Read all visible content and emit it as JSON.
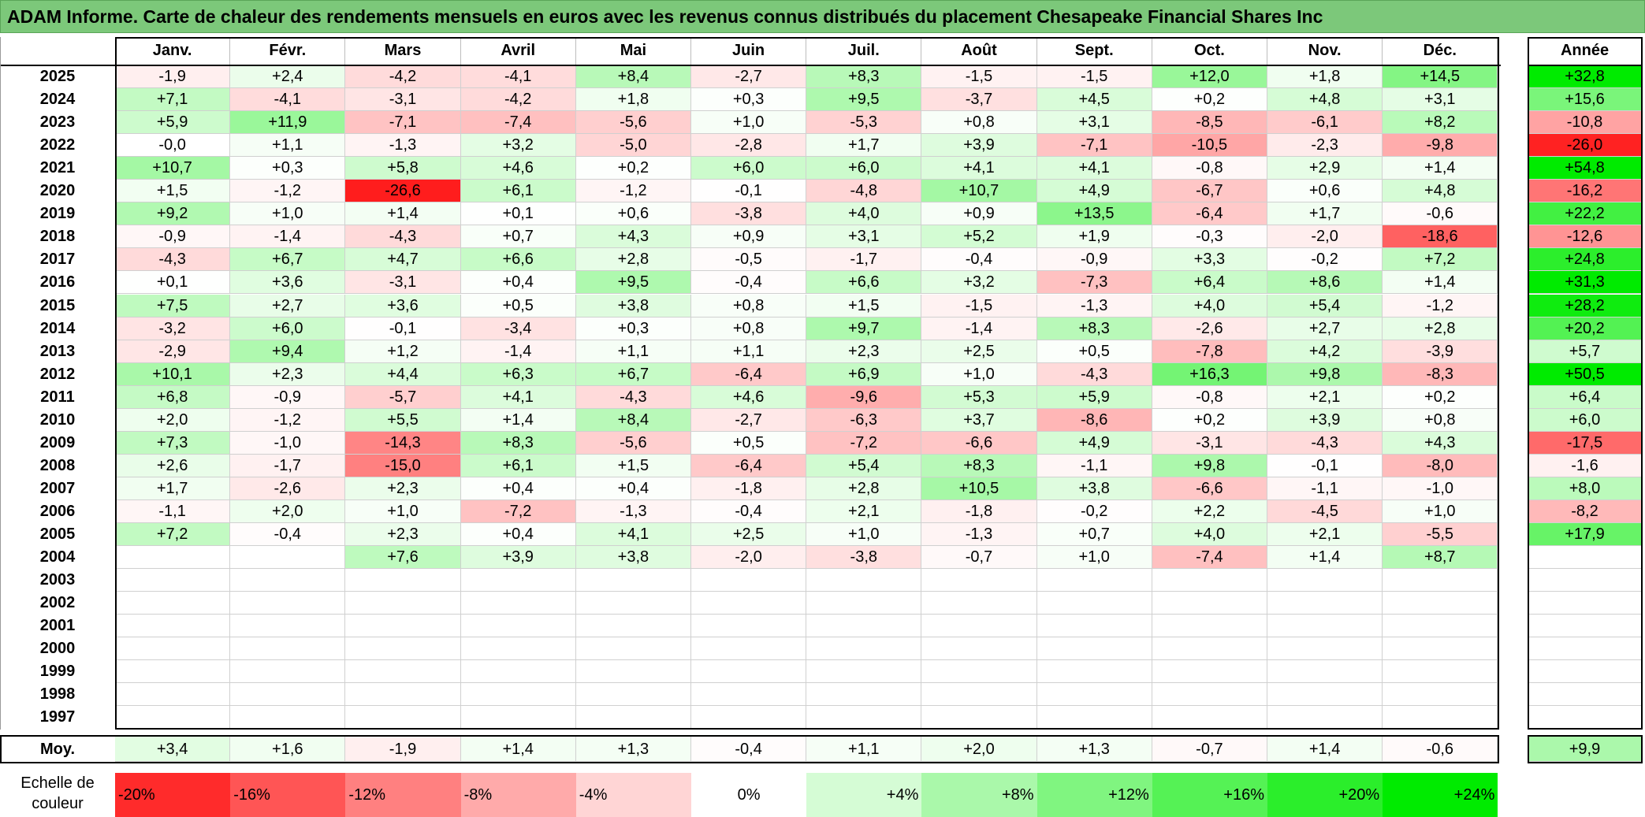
{
  "title": "ADAM Informe. Carte de chaleur des rendements mensuels en euros avec les revenus connus distribués du placement Chesapeake Financial Shares Inc",
  "colors": {
    "title_bg": "#7cc87a",
    "negative_max": "#ff0000",
    "neutral": "#ffffff",
    "positive_max": "#00e600"
  },
  "chart_data": {
    "type": "heatmap",
    "title": "ADAM Informe. Carte de chaleur des rendements mensuels en euros avec les revenus connus distribués du placement Chesapeake Financial Shares Inc",
    "columns": [
      "Janv.",
      "Févr.",
      "Mars",
      "Avril",
      "Mai",
      "Juin",
      "Juil.",
      "Août",
      "Sept.",
      "Oct.",
      "Nov.",
      "Déc."
    ],
    "year_header": "Année",
    "rows": [
      {
        "year": "2025",
        "values": [
          "-1,9",
          "+2,4",
          "-4,2",
          "-4,1",
          "+8,4",
          "-2,7",
          "+8,3",
          "-1,5",
          "-1,5",
          "+12,0",
          "+1,8",
          "+14,5"
        ],
        "annual": "+32,8"
      },
      {
        "year": "2024",
        "values": [
          "+7,1",
          "-4,1",
          "-3,1",
          "-4,2",
          "+1,8",
          "+0,3",
          "+9,5",
          "-3,7",
          "+4,5",
          "+0,2",
          "+4,8",
          "+3,1"
        ],
        "annual": "+15,6"
      },
      {
        "year": "2023",
        "values": [
          "+5,9",
          "+11,9",
          "-7,1",
          "-7,4",
          "-5,6",
          "+1,0",
          "-5,3",
          "+0,8",
          "+3,1",
          "-8,5",
          "-6,1",
          "+8,2"
        ],
        "annual": "-10,8"
      },
      {
        "year": "2022",
        "values": [
          "-0,0",
          "+1,1",
          "-1,3",
          "+3,2",
          "-5,0",
          "-2,8",
          "+1,7",
          "+3,9",
          "-7,1",
          "-10,5",
          "-2,3",
          "-9,8"
        ],
        "annual": "-26,0"
      },
      {
        "year": "2021",
        "values": [
          "+10,7",
          "+0,3",
          "+5,8",
          "+4,6",
          "+0,2",
          "+6,0",
          "+6,0",
          "+4,1",
          "+4,1",
          "-0,8",
          "+2,9",
          "+1,4"
        ],
        "annual": "+54,8"
      },
      {
        "year": "2020",
        "values": [
          "+1,5",
          "-1,2",
          "-26,6",
          "+6,1",
          "-1,2",
          "-0,1",
          "-4,8",
          "+10,7",
          "+4,9",
          "-6,7",
          "+0,6",
          "+4,8"
        ],
        "annual": "-16,2"
      },
      {
        "year": "2019",
        "values": [
          "+9,2",
          "+1,0",
          "+1,4",
          "+0,1",
          "+0,6",
          "-3,8",
          "+4,0",
          "+0,9",
          "+13,5",
          "-6,4",
          "+1,7",
          "-0,6"
        ],
        "annual": "+22,2"
      },
      {
        "year": "2018",
        "values": [
          "-0,9",
          "-1,4",
          "-4,3",
          "+0,7",
          "+4,3",
          "+0,9",
          "+3,1",
          "+5,2",
          "+1,9",
          "-0,3",
          "-2,0",
          "-18,6"
        ],
        "annual": "-12,6"
      },
      {
        "year": "2017",
        "values": [
          "-4,3",
          "+6,7",
          "+4,7",
          "+6,6",
          "+2,8",
          "-0,5",
          "-1,7",
          "-0,4",
          "-0,9",
          "+3,3",
          "-0,2",
          "+7,2"
        ],
        "annual": "+24,8"
      },
      {
        "year": "2016",
        "values": [
          "+0,1",
          "+3,6",
          "-3,1",
          "+0,4",
          "+9,5",
          "-0,4",
          "+6,6",
          "+3,2",
          "-7,3",
          "+6,4",
          "+8,6",
          "+1,4"
        ],
        "annual": "+31,3"
      },
      {
        "year": "2015",
        "values": [
          "+7,5",
          "+2,7",
          "+3,6",
          "+0,5",
          "+3,8",
          "+0,8",
          "+1,5",
          "-1,5",
          "-1,3",
          "+4,0",
          "+5,4",
          "-1,2"
        ],
        "annual": "+28,2"
      },
      {
        "year": "2014",
        "values": [
          "-3,2",
          "+6,0",
          "-0,1",
          "-3,4",
          "+0,3",
          "+0,8",
          "+9,7",
          "-1,4",
          "+8,3",
          "-2,6",
          "+2,7",
          "+2,8"
        ],
        "annual": "+20,2"
      },
      {
        "year": "2013",
        "values": [
          "-2,9",
          "+9,4",
          "+1,2",
          "-1,4",
          "+1,1",
          "+1,1",
          "+2,3",
          "+2,5",
          "+0,5",
          "-7,8",
          "+4,2",
          "-3,9"
        ],
        "annual": "+5,7"
      },
      {
        "year": "2012",
        "values": [
          "+10,1",
          "+2,3",
          "+4,4",
          "+6,3",
          "+6,7",
          "-6,4",
          "+6,9",
          "+1,0",
          "-4,3",
          "+16,3",
          "+9,8",
          "-8,3"
        ],
        "annual": "+50,5"
      },
      {
        "year": "2011",
        "values": [
          "+6,8",
          "-0,9",
          "-5,7",
          "+4,1",
          "-4,3",
          "+4,6",
          "-9,6",
          "+5,3",
          "+5,9",
          "-0,8",
          "+2,1",
          "+0,2"
        ],
        "annual": "+6,4"
      },
      {
        "year": "2010",
        "values": [
          "+2,0",
          "-1,2",
          "+5,5",
          "+1,4",
          "+8,4",
          "-2,7",
          "-6,3",
          "+3,7",
          "-8,6",
          "+0,2",
          "+3,9",
          "+0,8"
        ],
        "annual": "+6,0"
      },
      {
        "year": "2009",
        "values": [
          "+7,3",
          "-1,0",
          "-14,3",
          "+8,3",
          "-5,6",
          "+0,5",
          "-7,2",
          "-6,6",
          "+4,9",
          "-3,1",
          "-4,3",
          "+4,3"
        ],
        "annual": "-17,5"
      },
      {
        "year": "2008",
        "values": [
          "+2,6",
          "-1,7",
          "-15,0",
          "+6,1",
          "+1,5",
          "-6,4",
          "+5,4",
          "+8,3",
          "-1,1",
          "+9,8",
          "-0,1",
          "-8,0"
        ],
        "annual": "-1,6"
      },
      {
        "year": "2007",
        "values": [
          "+1,7",
          "-2,6",
          "+2,3",
          "+0,4",
          "+0,4",
          "-1,8",
          "+2,8",
          "+10,5",
          "+3,8",
          "-6,6",
          "-1,1",
          "-1,0"
        ],
        "annual": "+8,0"
      },
      {
        "year": "2006",
        "values": [
          "-1,1",
          "+2,0",
          "+1,0",
          "-7,2",
          "-1,3",
          "-0,4",
          "+2,1",
          "-1,8",
          "-0,2",
          "+2,2",
          "-4,5",
          "+1,0"
        ],
        "annual": "-8,2"
      },
      {
        "year": "2005",
        "values": [
          "+7,2",
          "-0,4",
          "+2,3",
          "+0,4",
          "+4,1",
          "+2,5",
          "+1,0",
          "-1,3",
          "+0,7",
          "+4,0",
          "+2,1",
          "-5,5"
        ],
        "annual": "+17,9"
      },
      {
        "year": "2004",
        "values": [
          "",
          "",
          "+7,6",
          "+3,9",
          "+3,8",
          "-2,0",
          "-3,8",
          "-0,7",
          "+1,0",
          "-7,4",
          "+1,4",
          "+8,7"
        ],
        "annual": ""
      },
      {
        "year": "2003",
        "values": [
          "",
          "",
          "",
          "",
          "",
          "",
          "",
          "",
          "",
          "",
          "",
          ""
        ],
        "annual": ""
      },
      {
        "year": "2002",
        "values": [
          "",
          "",
          "",
          "",
          "",
          "",
          "",
          "",
          "",
          "",
          "",
          ""
        ],
        "annual": ""
      },
      {
        "year": "2001",
        "values": [
          "",
          "",
          "",
          "",
          "",
          "",
          "",
          "",
          "",
          "",
          "",
          ""
        ],
        "annual": ""
      },
      {
        "year": "2000",
        "values": [
          "",
          "",
          "",
          "",
          "",
          "",
          "",
          "",
          "",
          "",
          "",
          ""
        ],
        "annual": ""
      },
      {
        "year": "1999",
        "values": [
          "",
          "",
          "",
          "",
          "",
          "",
          "",
          "",
          "",
          "",
          "",
          ""
        ],
        "annual": ""
      },
      {
        "year": "1998",
        "values": [
          "",
          "",
          "",
          "",
          "",
          "",
          "",
          "",
          "",
          "",
          "",
          ""
        ],
        "annual": ""
      },
      {
        "year": "1997",
        "values": [
          "",
          "",
          "",
          "",
          "",
          "",
          "",
          "",
          "",
          "",
          "",
          ""
        ],
        "annual": ""
      }
    ],
    "average": {
      "label": "Moy.",
      "values": [
        "+3,4",
        "+1,6",
        "-1,9",
        "+1,4",
        "+1,3",
        "-0,4",
        "+1,1",
        "+2,0",
        "+1,3",
        "-0,7",
        "+1,4",
        "-0,6"
      ],
      "annual": "+9,9"
    },
    "scale": {
      "label": "Echelle de couleur",
      "stops": [
        {
          "label": "-20%",
          "value": -20
        },
        {
          "label": "-16%",
          "value": -16
        },
        {
          "label": "-12%",
          "value": -12
        },
        {
          "label": "-8%",
          "value": -8
        },
        {
          "label": "-4%",
          "value": -4
        },
        {
          "label": "0%",
          "value": 0
        },
        {
          "label": "+4%",
          "value": 4
        },
        {
          "label": "+8%",
          "value": 8
        },
        {
          "label": "+12%",
          "value": 12
        },
        {
          "label": "+16%",
          "value": 16
        },
        {
          "label": "+20%",
          "value": 20
        },
        {
          "label": "+24%",
          "value": 24
        }
      ]
    }
  }
}
